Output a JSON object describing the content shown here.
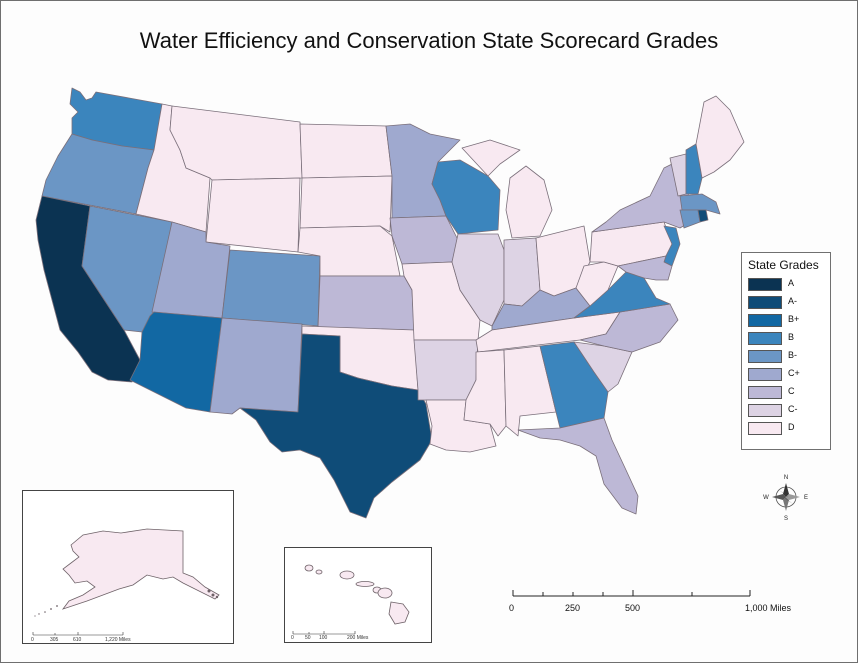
{
  "title": "Water Efficiency and Conservation State Scorecard Grades",
  "legend": {
    "title": "State Grades",
    "items": [
      {
        "label": "A",
        "color": "#0b3352"
      },
      {
        "label": "A-",
        "color": "#0f4c78"
      },
      {
        "label": "B+",
        "color": "#1268a3"
      },
      {
        "label": "B",
        "color": "#3b85bd"
      },
      {
        "label": "B-",
        "color": "#6b96c5"
      },
      {
        "label": "C+",
        "color": "#9fa9cf"
      },
      {
        "label": "C",
        "color": "#bdb8d6"
      },
      {
        "label": "C-",
        "color": "#ddd3e4"
      },
      {
        "label": "D",
        "color": "#f8e9f1"
      }
    ]
  },
  "scale_bar": {
    "labels": [
      "0",
      "250",
      "500",
      "1,000 Miles"
    ]
  },
  "alaska_scale": {
    "labels": [
      "0",
      "305",
      "610",
      "1,220 Miles"
    ]
  },
  "hawaii_scale": {
    "labels": [
      "0",
      "50",
      "100",
      "200 Miles"
    ]
  },
  "north_arrow": {
    "n": "N",
    "s": "S",
    "e": "E",
    "w": "W"
  }
}
